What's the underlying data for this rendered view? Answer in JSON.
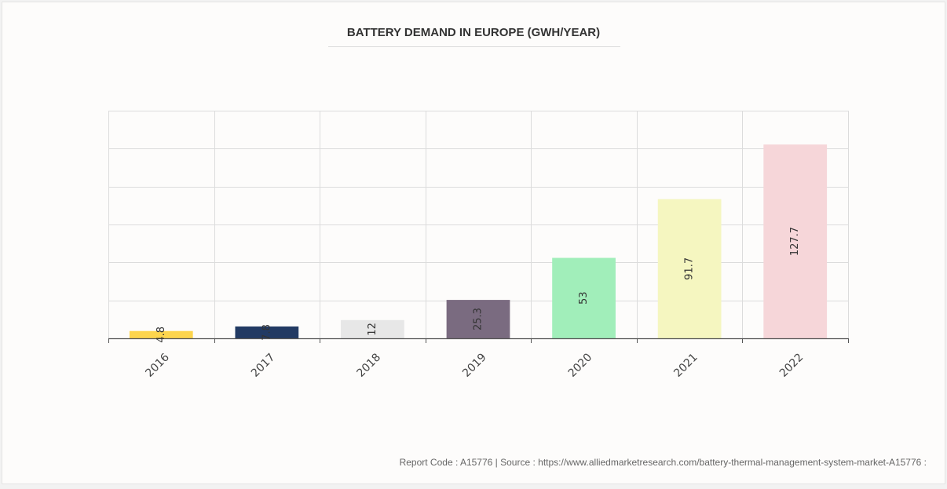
{
  "chart_data": {
    "type": "bar",
    "title": "BATTERY DEMAND IN EUROPE (GWH/YEAR)",
    "xlabel": "",
    "ylabel": "",
    "categories": [
      "2016",
      "2017",
      "2018",
      "2019",
      "2020",
      "2021",
      "2022"
    ],
    "values": [
      4.8,
      7.8,
      12,
      25.3,
      53,
      91.7,
      127.7
    ],
    "ylim": [
      0,
      150
    ],
    "grid": true,
    "legend": "none",
    "bar_colors": [
      "#fdd54d",
      "#223a63",
      "#e7e7e7",
      "#7a6b80",
      "#a1eeba",
      "#f5f6c0",
      "#f6d6d9"
    ],
    "label_colors": [
      "#333333",
      "#333333",
      "#333333",
      "#333333",
      "#333333",
      "#333333",
      "#333333"
    ]
  },
  "footer": {
    "source": "Report Code : A15776  |  Source : https://www.alliedmarketresearch.com/battery-thermal-management-system-market-A15776 :"
  }
}
